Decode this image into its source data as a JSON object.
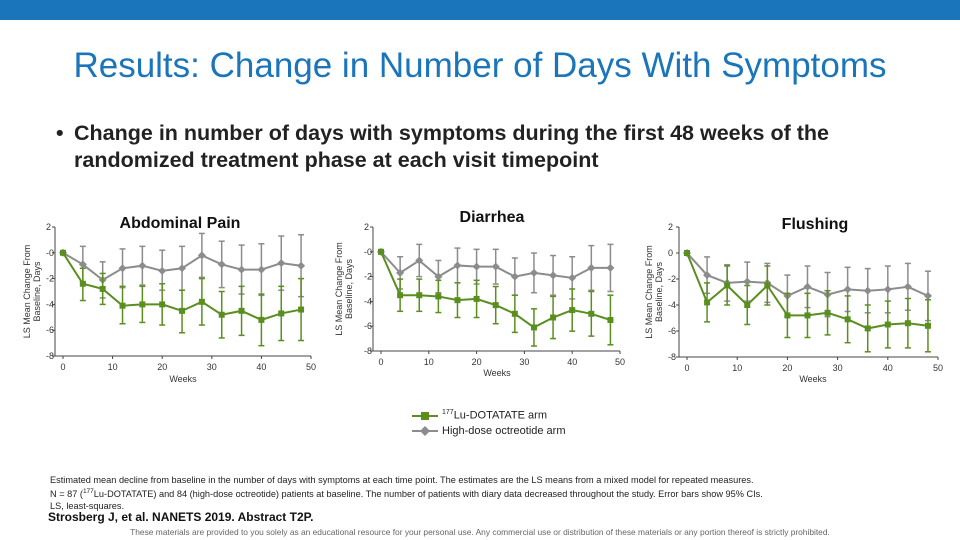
{
  "title": "Results: Change in Number of Days With Symptoms",
  "bullet": {
    "glyph": "•",
    "text": "Change in number of days with symptoms during the first 48 weeks of the randomized treatment phase at each visit timepoint"
  },
  "legend": {
    "items": [
      {
        "label": "177Lu-DOTATATE arm",
        "sup": "177",
        "rest": "Lu-DOTATATE arm",
        "color": "#5a8f1f"
      },
      {
        "label": "High-dose octreotide arm",
        "sup": "",
        "rest": "High-dose octreotide arm",
        "color": "#8c8c8c"
      }
    ]
  },
  "footnote": {
    "line1": "Estimated mean decline from baseline in the number of days with symptoms at each time point. The estimates are the LS means from a mixed model for repeated measures.",
    "line2_pre": "N = 87 (",
    "line2_sup": "177",
    "line2_post": "Lu-DOTATATE) and 84 (high-dose octreotide) patients at baseline. The number of patients with diary data decreased throughout the study. Error bars show 95% CIs.",
    "line3": "LS, least-squares."
  },
  "citation": "Strosberg J, et al. NANETS 2019. Abstract T2P.",
  "disclaimer": "These materials are provided to you solely as an educational resource for your personal use. Any commercial use or distribution of these materials or any portion thereof is strictly prohibited.",
  "chart_data": [
    {
      "type": "line",
      "title": "Abdominal Pain",
      "xlabel": "Weeks",
      "ylabel": "LS Mean Change From Baseline, Days",
      "xlim": [
        0,
        50
      ],
      "ylim": [
        -8,
        2
      ],
      "xticks": [
        0,
        10,
        20,
        30,
        40,
        50
      ],
      "yticks": [
        2,
        0,
        -2,
        -4,
        -6,
        -8
      ],
      "ytick_labels": [
        "2",
        "-0",
        "-2",
        "-4",
        "-6",
        "-8"
      ],
      "x": [
        0,
        4,
        8,
        12,
        16,
        20,
        24,
        28,
        32,
        36,
        40,
        44,
        48
      ],
      "series": [
        {
          "name": "177Lu-DOTATATE arm",
          "color": "#5a8f1f",
          "y": [
            0,
            -2.4,
            -2.8,
            -4.1,
            -4.0,
            -4.0,
            -4.5,
            -3.8,
            -4.8,
            -4.5,
            -5.2,
            -4.7,
            -4.4
          ],
          "ylow": [
            0,
            -3.7,
            -4.0,
            -5.5,
            -5.4,
            -5.6,
            -6.2,
            -5.6,
            -6.6,
            -6.4,
            -7.2,
            -6.8,
            -6.8
          ],
          "yhigh": [
            0,
            -1.2,
            -1.6,
            -2.6,
            -2.6,
            -2.4,
            -2.9,
            -2.0,
            -3.0,
            -2.6,
            -3.2,
            -2.6,
            -2.0
          ]
        },
        {
          "name": "High-dose octreotide arm",
          "color": "#8c8c8c",
          "y": [
            0,
            -0.9,
            -2.1,
            -1.2,
            -1.0,
            -1.4,
            -1.2,
            -0.2,
            -0.9,
            -1.3,
            -1.3,
            -0.8,
            -1.0
          ],
          "ylow": [
            0,
            -2.3,
            -3.5,
            -2.7,
            -2.5,
            -2.9,
            -2.9,
            -1.9,
            -2.7,
            -3.2,
            -3.3,
            -2.9,
            -3.4
          ],
          "yhigh": [
            0,
            0.5,
            -0.7,
            0.3,
            0.5,
            0.2,
            0.5,
            1.5,
            0.9,
            0.6,
            0.7,
            1.3,
            1.4
          ]
        }
      ]
    },
    {
      "type": "line",
      "title": "Diarrhea",
      "xlabel": "Weeks",
      "ylabel": "LS Mean Change From Baseline, Days",
      "xlim": [
        0,
        50
      ],
      "ylim": [
        -8,
        2
      ],
      "xticks": [
        0,
        10,
        20,
        30,
        40,
        50
      ],
      "yticks": [
        2,
        0,
        -2,
        -4,
        -6,
        -8
      ],
      "ytick_labels": [
        "2",
        "-0",
        "-2",
        "-4",
        "-6",
        "-8"
      ],
      "x": [
        0,
        4,
        8,
        12,
        16,
        20,
        24,
        28,
        32,
        36,
        40,
        44,
        48
      ],
      "series": [
        {
          "name": "177Lu-DOTATATE arm",
          "color": "#5a8f1f",
          "y": [
            0,
            -3.5,
            -3.5,
            -3.6,
            -3.9,
            -3.8,
            -4.3,
            -5.0,
            -6.1,
            -5.3,
            -4.7,
            -5.0,
            -5.5
          ],
          "ylow": [
            0,
            -4.8,
            -4.8,
            -4.9,
            -5.3,
            -5.3,
            -5.8,
            -6.5,
            -7.6,
            -7.0,
            -6.4,
            -6.8,
            -7.5
          ],
          "yhigh": [
            0,
            -2.2,
            -2.2,
            -2.3,
            -2.5,
            -2.3,
            -2.8,
            -3.5,
            -4.6,
            -3.6,
            -3.0,
            -3.2,
            -3.5
          ]
        },
        {
          "name": "High-dose octreotide arm",
          "color": "#8c8c8c",
          "y": [
            0,
            -1.7,
            -0.7,
            -2.0,
            -1.1,
            -1.2,
            -1.2,
            -2.0,
            -1.7,
            -1.9,
            -2.1,
            -1.3,
            -1.3
          ],
          "ylow": [
            0,
            -3.0,
            -2.0,
            -3.3,
            -2.5,
            -2.6,
            -2.6,
            -3.5,
            -3.3,
            -3.5,
            -3.8,
            -3.1,
            -3.2
          ],
          "yhigh": [
            0,
            -0.4,
            0.6,
            -0.7,
            0.3,
            0.2,
            0.2,
            -0.5,
            -0.1,
            -0.3,
            -0.4,
            0.5,
            0.6
          ]
        }
      ]
    },
    {
      "type": "line",
      "title": "Flushing",
      "xlabel": "Weeks",
      "ylabel": "LS Mean Change From Baseline, Days",
      "xlim": [
        0,
        50
      ],
      "ylim": [
        -8,
        2
      ],
      "xticks": [
        0,
        10,
        20,
        30,
        40,
        50
      ],
      "yticks": [
        2,
        0,
        -2,
        -4,
        -6,
        -8
      ],
      "ytick_labels": [
        "2",
        "0",
        "-2",
        "-4",
        "-6",
        "-8"
      ],
      "x": [
        0,
        4,
        8,
        12,
        16,
        20,
        24,
        28,
        32,
        36,
        40,
        44,
        48
      ],
      "series": [
        {
          "name": "177Lu-DOTATATE arm",
          "color": "#5a8f1f",
          "y": [
            0,
            -3.8,
            -2.5,
            -4.0,
            -2.5,
            -4.8,
            -4.8,
            -4.6,
            -5.1,
            -5.8,
            -5.5,
            -5.4,
            -5.6
          ],
          "ylow": [
            0,
            -5.3,
            -4.0,
            -5.5,
            -4.0,
            -6.5,
            -6.5,
            -6.3,
            -6.9,
            -7.6,
            -7.3,
            -7.3,
            -7.6
          ],
          "yhigh": [
            0,
            -2.3,
            -1.0,
            -2.5,
            -1.0,
            -3.1,
            -3.1,
            -2.9,
            -3.3,
            -4.0,
            -3.7,
            -3.5,
            -3.6
          ]
        },
        {
          "name": "High-dose octreotide arm",
          "color": "#8c8c8c",
          "y": [
            0,
            -1.7,
            -2.3,
            -2.2,
            -2.3,
            -3.3,
            -2.6,
            -3.2,
            -2.8,
            -2.9,
            -2.8,
            -2.6,
            -3.3
          ],
          "ylow": [
            0,
            -3.1,
            -3.7,
            -3.7,
            -3.8,
            -4.9,
            -4.2,
            -4.9,
            -4.5,
            -4.6,
            -4.6,
            -4.4,
            -5.2
          ],
          "yhigh": [
            0,
            -0.3,
            -0.9,
            -0.7,
            -0.8,
            -1.7,
            -1.0,
            -1.5,
            -1.1,
            -1.2,
            -1.0,
            -0.8,
            -1.4
          ]
        }
      ]
    }
  ]
}
